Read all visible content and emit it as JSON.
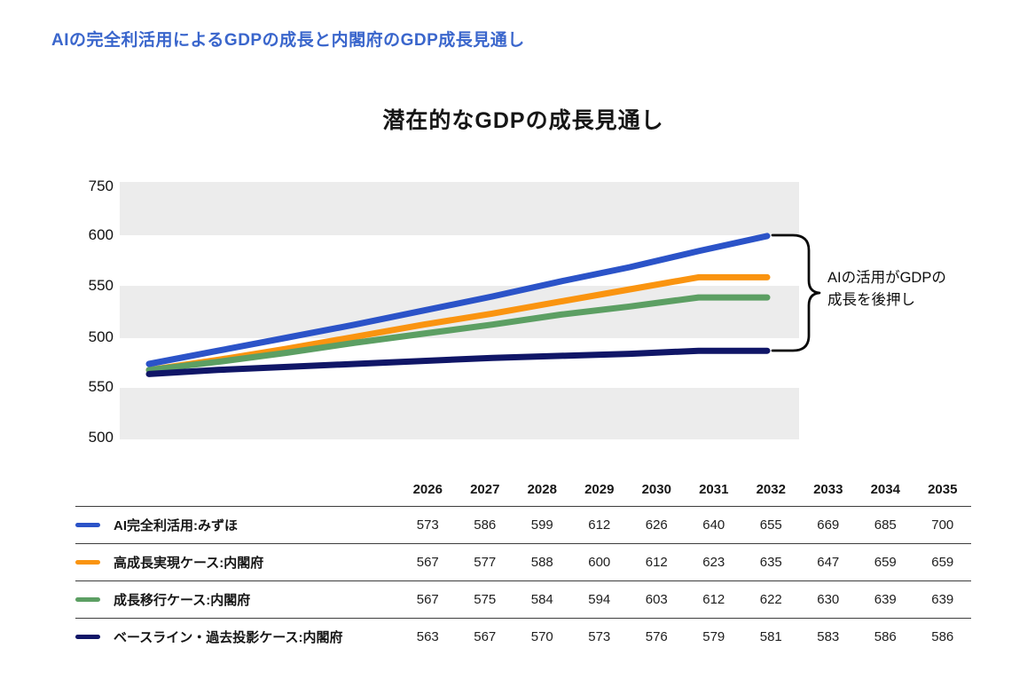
{
  "page_title": "AIの完全利活用によるGDPの成長と内閣府のGDP成長見通し",
  "annotation": {
    "line1": "AIの活用がGDPの",
    "line2": "成長を後押し"
  },
  "chart_data": {
    "type": "line",
    "title": "潜在的なGDPの成長見通し",
    "x": [
      2026,
      2027,
      2028,
      2029,
      2030,
      2031,
      2032,
      2033,
      2034,
      2035
    ],
    "series": [
      {
        "name": "AI完全利活用:みずほ",
        "color": "#2b53c8",
        "values": [
          573,
          586,
          599,
          612,
          626,
          640,
          655,
          669,
          685,
          700
        ]
      },
      {
        "name": "高成長実現ケース:内閣府",
        "color": "#fa9410",
        "values": [
          567,
          577,
          588,
          600,
          612,
          623,
          635,
          647,
          659,
          659
        ]
      },
      {
        "name": "成長移行ケース:内閣府",
        "color": "#5c9f63",
        "values": [
          567,
          575,
          584,
          594,
          603,
          612,
          622,
          630,
          639,
          639
        ]
      },
      {
        "name": "ベースライン・過去投影ケース:内閣府",
        "color": "#101667",
        "values": [
          563,
          567,
          570,
          573,
          576,
          579,
          581,
          583,
          586,
          586
        ]
      }
    ],
    "y_axis_tick_labels": [
      "750",
      "600",
      "550",
      "500",
      "550",
      "500"
    ],
    "grid": "horizontal-gray-bands",
    "legend_position": "table-below-chart",
    "annotation": "AIの活用がGDPの成長を後押し",
    "band_color": "#ececec"
  }
}
